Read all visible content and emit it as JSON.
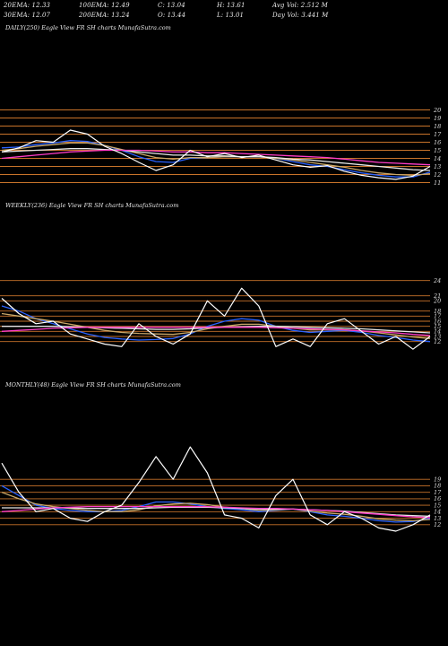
{
  "header": {
    "row1": [
      "20EMA: 12.33",
      "100EMA: 12.49",
      "C: 13.04",
      "H: 13.61",
      "Avg Vol: 2.512  M"
    ],
    "row2": [
      "30EMA: 12.07",
      "200EMA: 13.24",
      "O: 13.44",
      "L: 13.01",
      "Day Vol: 3.441  M"
    ]
  },
  "chart_data": [
    {
      "type": "line",
      "panel": "daily",
      "label": "DAILY(250) Eagle  View  FR               SH charts MunafaSutra.com",
      "y_ticks": [
        20,
        19,
        18,
        17,
        16,
        15,
        14,
        13,
        12,
        11
      ],
      "ylim": [
        10.5,
        20.5
      ],
      "x": [
        0,
        10,
        20,
        30,
        40,
        50,
        60,
        70,
        80,
        90,
        100,
        110,
        120,
        130,
        140,
        150,
        160,
        170,
        180,
        190,
        200,
        210,
        220,
        230,
        240,
        250
      ],
      "series": [
        {
          "role": "price",
          "color": "#ffffff",
          "values": [
            14.8,
            15.3,
            16.2,
            16.0,
            17.5,
            17.0,
            15.5,
            14.6,
            13.5,
            12.5,
            13.2,
            15.0,
            14.2,
            14.6,
            14.1,
            14.4,
            13.8,
            13.2,
            12.9,
            13.1,
            12.4,
            11.9,
            11.6,
            11.4,
            11.8,
            13.0
          ]
        },
        {
          "role": "ema-20",
          "color": "#2a62ff",
          "values": [
            15.3,
            15.4,
            15.7,
            15.9,
            16.2,
            16.1,
            15.6,
            15.0,
            14.2,
            13.6,
            13.5,
            14.0,
            14.1,
            14.2,
            14.2,
            14.2,
            14.0,
            13.6,
            13.2,
            13.0,
            12.6,
            12.2,
            11.9,
            11.7,
            11.7,
            12.3
          ]
        },
        {
          "role": "ema-30",
          "color": "#c9a86a",
          "values": [
            15.0,
            15.2,
            15.5,
            15.7,
            15.9,
            15.9,
            15.6,
            15.1,
            14.6,
            14.1,
            13.9,
            14.1,
            14.1,
            14.2,
            14.2,
            14.2,
            14.0,
            13.8,
            13.5,
            13.2,
            12.9,
            12.5,
            12.2,
            12.0,
            11.9,
            12.1
          ]
        },
        {
          "role": "ema-100",
          "color": "#e8e8e8",
          "values": [
            14.8,
            14.9,
            15.0,
            15.1,
            15.2,
            15.2,
            15.1,
            15.0,
            14.8,
            14.6,
            14.4,
            14.4,
            14.3,
            14.3,
            14.2,
            14.2,
            14.1,
            13.9,
            13.8,
            13.6,
            13.4,
            13.2,
            13.0,
            12.8,
            12.6,
            12.5
          ]
        },
        {
          "role": "ema-200",
          "color": "#ff3cc8",
          "values": [
            14.0,
            14.2,
            14.4,
            14.6,
            14.8,
            14.9,
            15.0,
            15.0,
            15.0,
            14.9,
            14.8,
            14.8,
            14.7,
            14.7,
            14.6,
            14.5,
            14.4,
            14.3,
            14.2,
            14.1,
            13.9,
            13.7,
            13.5,
            13.4,
            13.3,
            13.2
          ]
        }
      ]
    },
    {
      "type": "line",
      "panel": "weekly",
      "label": "WEEKLY(236) Eagle  View  FR               SH charts MunafaSutra.com",
      "y_ticks": [
        24,
        21,
        20,
        18,
        17,
        16,
        15,
        14,
        13,
        12
      ],
      "ylim": [
        10,
        25
      ],
      "x": [
        0,
        10,
        20,
        30,
        40,
        50,
        60,
        70,
        80,
        90,
        100,
        110,
        120,
        130,
        140,
        150,
        160,
        170,
        180,
        190,
        200,
        210,
        220,
        230,
        240,
        250
      ],
      "series": [
        {
          "role": "price",
          "color": "#ffffff",
          "values": [
            20.5,
            17.5,
            15.5,
            16.0,
            13.5,
            12.5,
            11.5,
            11.0,
            15.5,
            13.0,
            11.5,
            13.5,
            20.0,
            17.0,
            22.5,
            19.0,
            11.0,
            12.5,
            11.0,
            15.5,
            16.5,
            14.0,
            11.5,
            13.0,
            10.5,
            13.0
          ]
        },
        {
          "role": "ema-20",
          "color": "#2a62ff",
          "values": [
            19.0,
            18.0,
            16.5,
            15.5,
            14.5,
            13.5,
            12.8,
            12.5,
            12.3,
            12.4,
            12.6,
            13.5,
            15.0,
            16.0,
            16.5,
            16.2,
            15.0,
            14.2,
            13.8,
            14.0,
            14.2,
            13.8,
            13.2,
            12.8,
            12.3,
            12.0
          ]
        },
        {
          "role": "ema-30",
          "color": "#c9a86a",
          "values": [
            17.5,
            17.0,
            16.5,
            16.0,
            15.4,
            14.8,
            14.2,
            13.8,
            13.6,
            13.5,
            13.4,
            13.8,
            14.5,
            15.0,
            15.4,
            15.4,
            15.0,
            14.6,
            14.3,
            14.3,
            14.3,
            14.1,
            13.7,
            13.3,
            12.9,
            12.6
          ]
        },
        {
          "role": "ema-100",
          "color": "#e8e8e8",
          "values": [
            15.0,
            15.0,
            15.0,
            15.0,
            14.9,
            14.8,
            14.7,
            14.6,
            14.5,
            14.4,
            14.4,
            14.5,
            14.7,
            14.8,
            14.9,
            15.0,
            15.0,
            14.9,
            14.8,
            14.7,
            14.6,
            14.5,
            14.3,
            14.1,
            13.9,
            13.7
          ]
        },
        {
          "role": "ema-200",
          "color": "#ff3cc8",
          "values": [
            14.0,
            14.2,
            14.4,
            14.6,
            14.7,
            14.8,
            14.8,
            14.8,
            14.8,
            14.8,
            14.8,
            14.8,
            14.8,
            14.8,
            14.8,
            14.8,
            14.7,
            14.6,
            14.5,
            14.4,
            14.3,
            14.1,
            13.9,
            13.7,
            13.4,
            13.2
          ]
        }
      ]
    },
    {
      "type": "line",
      "panel": "monthly",
      "label": "MONTHLY(48) Eagle  View  FR               SH charts MunafaSutra.com",
      "y_ticks": [
        19,
        18,
        17,
        16,
        15,
        14,
        13,
        12
      ],
      "ylim": [
        11,
        20
      ],
      "x": [
        0,
        10,
        20,
        30,
        40,
        50,
        60,
        70,
        80,
        90,
        100,
        110,
        120,
        130,
        140,
        150,
        160,
        170,
        180,
        190,
        200,
        210,
        220,
        230,
        240,
        250
      ],
      "series": [
        {
          "role": "price",
          "color": "#ffffff",
          "values": [
            21.5,
            17.0,
            14.0,
            14.5,
            13.0,
            12.5,
            14.0,
            15.0,
            18.5,
            22.5,
            19.0,
            24.0,
            20.0,
            13.5,
            13.0,
            11.5,
            16.5,
            19.0,
            13.5,
            12.0,
            14.0,
            13.0,
            11.5,
            11.0,
            12.0,
            13.5
          ]
        },
        {
          "role": "ema-20",
          "color": "#2a62ff",
          "values": [
            18.0,
            16.5,
            15.0,
            14.5,
            14.2,
            14.0,
            14.0,
            14.2,
            14.8,
            15.5,
            15.5,
            15.2,
            14.8,
            14.5,
            14.3,
            14.0,
            14.2,
            14.4,
            14.0,
            13.5,
            13.3,
            13.0,
            12.6,
            12.4,
            12.5,
            13.0
          ]
        },
        {
          "role": "ema-30",
          "color": "#c9a86a",
          "values": [
            17.0,
            16.0,
            15.2,
            14.8,
            14.5,
            14.2,
            14.0,
            14.0,
            14.3,
            14.9,
            15.2,
            15.3,
            15.1,
            14.7,
            14.5,
            14.2,
            14.3,
            14.4,
            14.1,
            13.8,
            13.6,
            13.3,
            12.9,
            12.7,
            12.6,
            12.8
          ]
        },
        {
          "role": "ema-100",
          "color": "#e8e8e8",
          "values": [
            14.6,
            14.6,
            14.6,
            14.6,
            14.6,
            14.5,
            14.5,
            14.5,
            14.5,
            14.6,
            14.7,
            14.7,
            14.7,
            14.6,
            14.5,
            14.4,
            14.4,
            14.4,
            14.3,
            14.2,
            14.1,
            13.9,
            13.7,
            13.5,
            13.4,
            13.3
          ]
        },
        {
          "role": "ema-200",
          "color": "#ff3cc8",
          "values": [
            14.0,
            14.2,
            14.4,
            14.6,
            14.7,
            14.8,
            14.8,
            14.8,
            14.8,
            14.8,
            14.8,
            14.8,
            14.8,
            14.7,
            14.6,
            14.5,
            14.5,
            14.4,
            14.3,
            14.2,
            14.0,
            13.8,
            13.6,
            13.4,
            13.2,
            13.1
          ]
        }
      ]
    }
  ]
}
